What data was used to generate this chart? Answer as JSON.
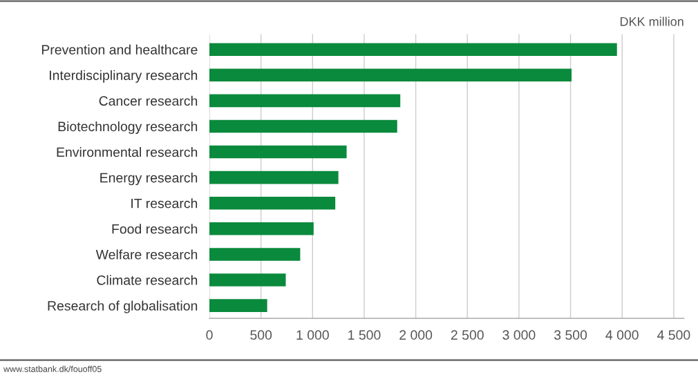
{
  "chart_data": {
    "type": "bar",
    "orientation": "horizontal",
    "xlabel": "DKK million",
    "categories": [
      "Prevention and healthcare",
      "Interdisciplinary research",
      "Cancer research",
      "Biotechnology research",
      "Environmental research",
      "Energy research",
      "IT research",
      "Food research",
      "Welfare research",
      "Climate research",
      "Research of globalisation"
    ],
    "values": [
      3950,
      3510,
      1850,
      1820,
      1330,
      1250,
      1220,
      1010,
      880,
      740,
      560
    ],
    "color": "#0a8a3c",
    "xlim": [
      0,
      4600
    ],
    "xticks": [
      0,
      500,
      {
        "value": 1000,
        "label": "1 000"
      },
      {
        "value": 1500,
        "label": "1 500"
      },
      {
        "value": 2000,
        "label": "2 000"
      },
      {
        "value": 2500,
        "label": "2 500"
      },
      {
        "value": 3000,
        "label": "3 000"
      },
      {
        "value": 3500,
        "label": "3 500"
      },
      {
        "value": 4000,
        "label": "4 000"
      },
      {
        "value": 4500,
        "label": "4 500"
      }
    ],
    "grid": "x",
    "legend": false,
    "annotations": [
      "www.statbank.dk/fouoff05"
    ]
  }
}
